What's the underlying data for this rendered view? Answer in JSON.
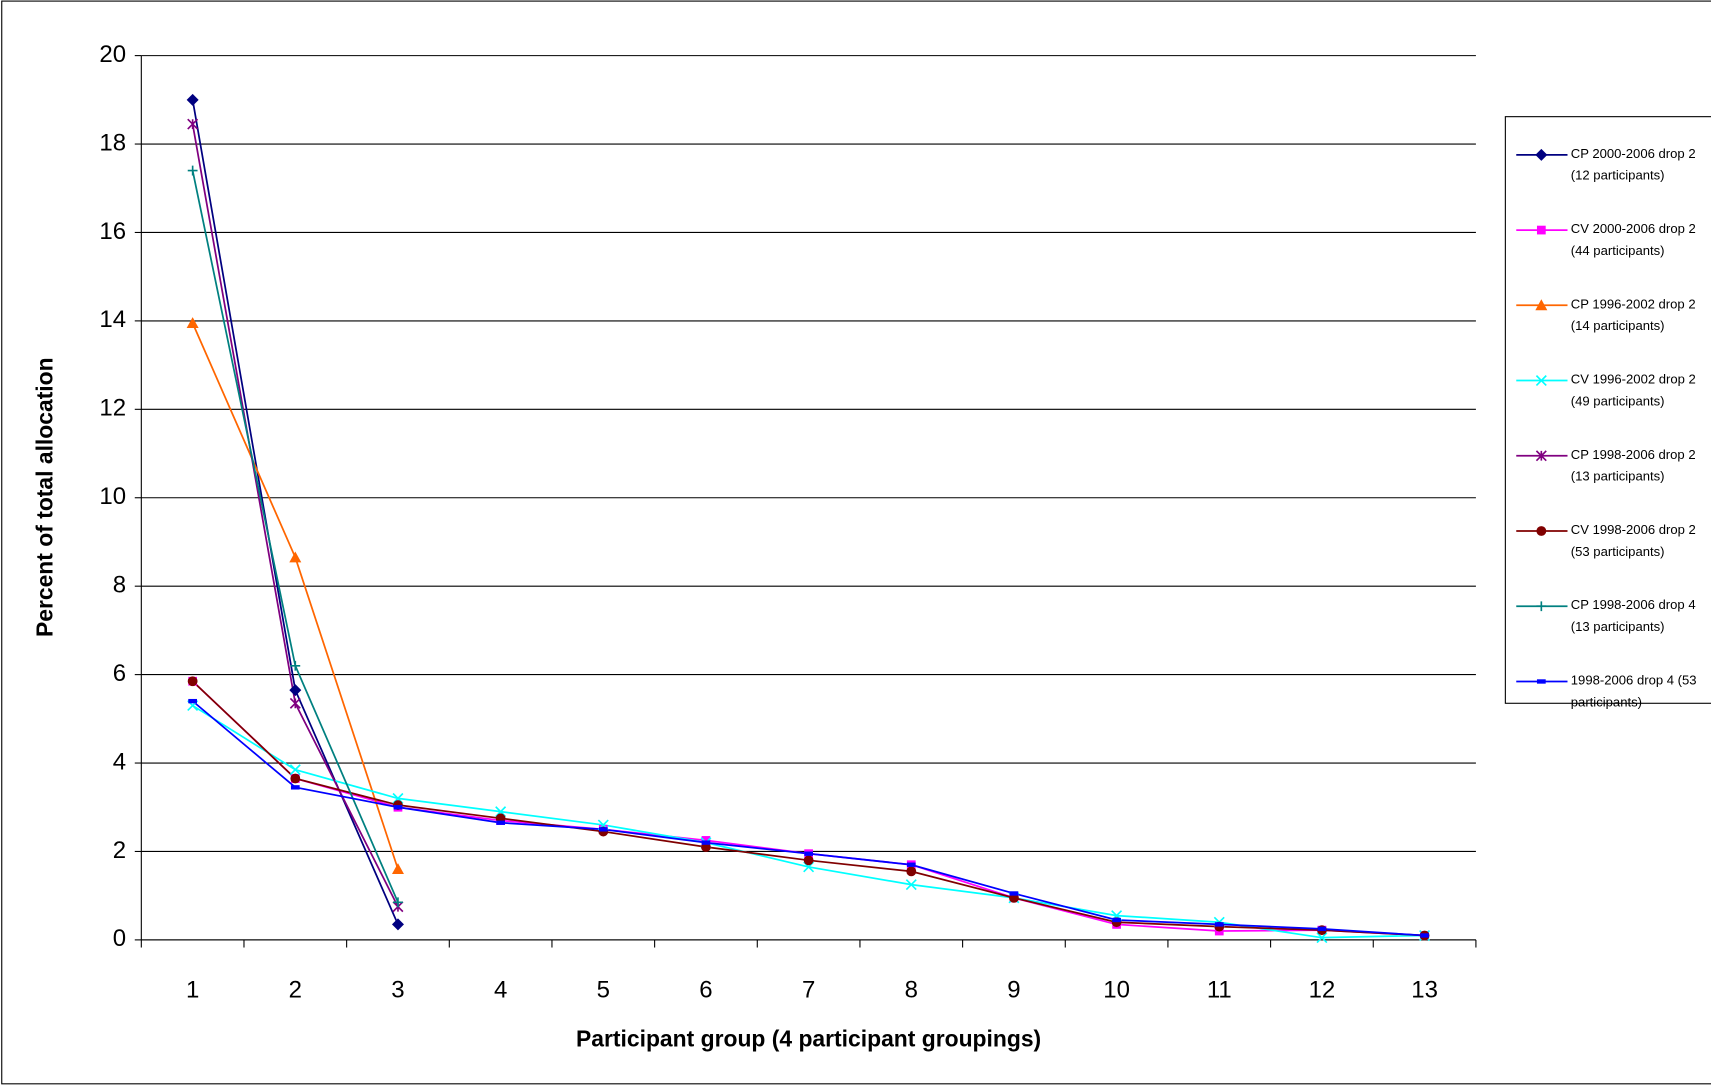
{
  "chart_data": {
    "type": "line",
    "x_label": "Participant group (4 participant groupings)",
    "y_label": "Percent of total allocation",
    "x": [
      1,
      2,
      3,
      4,
      5,
      6,
      7,
      8,
      9,
      10,
      11,
      12,
      13
    ],
    "xlim": [
      0.5,
      13.5
    ],
    "ylim": [
      0,
      20
    ],
    "yticks": [
      0,
      2,
      4,
      6,
      8,
      10,
      12,
      14,
      16,
      18,
      20
    ],
    "grid": true,
    "legend": "right",
    "series": [
      {
        "name": "CP 2000-2006 drop 2 (12 participants)",
        "color": "#000080",
        "marker": "diamond",
        "values": [
          19.0,
          5.65,
          0.35,
          null,
          null,
          null,
          null,
          null,
          null,
          null,
          null,
          null,
          null
        ]
      },
      {
        "name": "CV 2000-2006 drop 2 (44 participants)",
        "color": "#ff00ff",
        "marker": "square",
        "values": [
          5.85,
          3.65,
          3.0,
          2.7,
          2.5,
          2.25,
          1.95,
          1.7,
          0.95,
          0.35,
          0.2,
          0.22,
          0.1
        ]
      },
      {
        "name": "CP 1996-2002 drop 2 (14 participants)",
        "color": "#ff6600",
        "marker": "triangle",
        "values": [
          13.95,
          8.65,
          1.6,
          null,
          null,
          null,
          null,
          null,
          null,
          null,
          null,
          null,
          null
        ]
      },
      {
        "name": "CV 1996-2002 drop 2 (49 participants)",
        "color": "#00ffff",
        "marker": "x",
        "values": [
          5.3,
          3.85,
          3.2,
          2.9,
          2.6,
          2.2,
          1.65,
          1.25,
          0.95,
          0.55,
          0.4,
          0.05,
          0.1
        ]
      },
      {
        "name": "CP 1998-2006 drop 2 (13 participants)",
        "color": "#800080",
        "marker": "star",
        "values": [
          18.45,
          5.35,
          0.75,
          null,
          null,
          null,
          null,
          null,
          null,
          null,
          null,
          null,
          null
        ]
      },
      {
        "name": "CV 1998-2006 drop 2 (53 participants)",
        "color": "#800000",
        "marker": "circle",
        "values": [
          5.85,
          3.65,
          3.05,
          2.75,
          2.45,
          2.1,
          1.8,
          1.55,
          0.95,
          0.4,
          0.3,
          0.22,
          0.1
        ]
      },
      {
        "name": "CP 1998-2006 drop 4 (13 participants)",
        "color": "#008080",
        "marker": "plus",
        "values": [
          17.4,
          6.2,
          0.85,
          null,
          null,
          null,
          null,
          null,
          null,
          null,
          null,
          null,
          null
        ]
      },
      {
        "name": "1998-2006 drop 4 (53 participants)",
        "color": "#0000ff",
        "marker": "dash",
        "values": [
          5.4,
          3.45,
          3.0,
          2.65,
          2.5,
          2.2,
          1.95,
          1.7,
          1.05,
          0.45,
          0.35,
          0.25,
          0.1
        ]
      }
    ]
  }
}
